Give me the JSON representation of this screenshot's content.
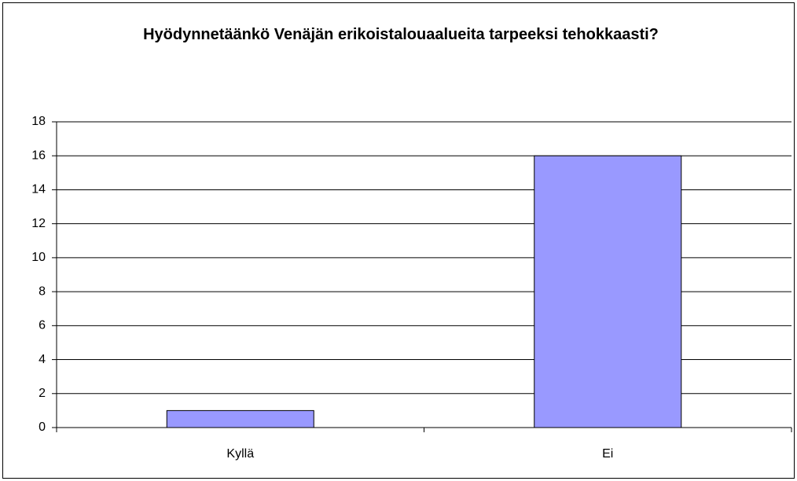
{
  "chart_data": {
    "type": "bar",
    "title": "Hyödynnetäänkö Venäjän erikoistalouaalueita tarpeeksi tehokkaasti?",
    "categories": [
      "Kyllä",
      "Ei"
    ],
    "values": [
      1,
      16
    ],
    "color": "#9999ff",
    "ylim": [
      0,
      18
    ],
    "yticks": [
      0,
      2,
      4,
      6,
      8,
      10,
      12,
      14,
      16,
      18
    ],
    "grid": true
  }
}
